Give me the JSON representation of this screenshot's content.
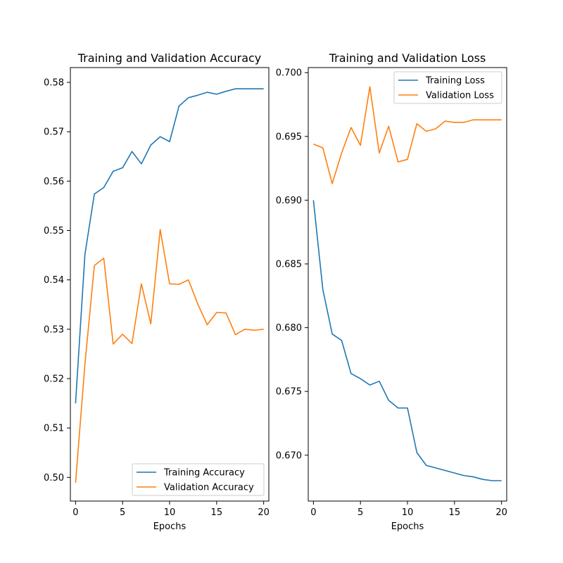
{
  "chart_data": [
    {
      "type": "line",
      "title": "Training and Validation Accuracy",
      "xlabel": "Epochs",
      "ylabel": "",
      "xlim": [
        -0.55,
        20.55
      ],
      "ylim": [
        0.4952,
        0.583
      ],
      "xticks": [
        0,
        5,
        10,
        15,
        20
      ],
      "xtick_labels": [
        "0",
        "5",
        "10",
        "15",
        "20"
      ],
      "yticks": [
        0.5,
        0.51,
        0.52,
        0.53,
        0.54,
        0.55,
        0.56,
        0.57,
        0.58
      ],
      "ytick_labels": [
        "0.50",
        "0.51",
        "0.52",
        "0.53",
        "0.54",
        "0.55",
        "0.56",
        "0.57",
        "0.58"
      ],
      "legend_position": "lower right",
      "x": [
        0,
        1,
        2,
        3,
        4,
        5,
        6,
        7,
        8,
        9,
        10,
        11,
        12,
        13,
        14,
        15,
        16,
        17,
        18,
        19,
        20
      ],
      "series": [
        {
          "name": "Training Accuracy",
          "color": "#1f77b4",
          "values": [
            0.515,
            0.5452,
            0.5574,
            0.5587,
            0.562,
            0.5627,
            0.566,
            0.5635,
            0.5673,
            0.569,
            0.568,
            0.5752,
            0.5769,
            0.5774,
            0.578,
            0.5776,
            0.5782,
            0.5787,
            0.5787,
            0.5787,
            0.5787
          ]
        },
        {
          "name": "Validation Accuracy",
          "color": "#ff7f0e",
          "values": [
            0.4989,
            0.523,
            0.5429,
            0.5444,
            0.527,
            0.529,
            0.5271,
            0.5392,
            0.5311,
            0.5502,
            0.5392,
            0.5391,
            0.54,
            0.5351,
            0.5309,
            0.5334,
            0.5333,
            0.5289,
            0.53,
            0.5298,
            0.53
          ]
        }
      ]
    },
    {
      "type": "line",
      "title": "Training and Validation Loss",
      "xlabel": "Epochs",
      "ylabel": "",
      "xlim": [
        -0.55,
        20.55
      ],
      "ylim": [
        0.6664,
        0.7004
      ],
      "xticks": [
        0,
        5,
        10,
        15,
        20
      ],
      "xtick_labels": [
        "0",
        "5",
        "10",
        "15",
        "20"
      ],
      "yticks": [
        0.67,
        0.675,
        0.68,
        0.685,
        0.69,
        0.695,
        0.7
      ],
      "ytick_labels": [
        "0.670",
        "0.675",
        "0.680",
        "0.685",
        "0.690",
        "0.695",
        "0.700"
      ],
      "legend_position": "upper right",
      "x": [
        0,
        1,
        2,
        3,
        4,
        5,
        6,
        7,
        8,
        9,
        10,
        11,
        12,
        13,
        14,
        15,
        16,
        17,
        18,
        19,
        20
      ],
      "series": [
        {
          "name": "Training Loss",
          "color": "#1f77b4",
          "values": [
            0.69,
            0.683,
            0.6795,
            0.679,
            0.6764,
            0.676,
            0.6755,
            0.6758,
            0.6743,
            0.6737,
            0.6737,
            0.6702,
            0.6692,
            0.669,
            0.6688,
            0.6686,
            0.6684,
            0.6683,
            0.6681,
            0.668,
            0.668
          ]
        },
        {
          "name": "Validation Loss",
          "color": "#ff7f0e",
          "values": [
            0.6944,
            0.6941,
            0.6913,
            0.6937,
            0.6957,
            0.6943,
            0.6989,
            0.6937,
            0.6958,
            0.693,
            0.6932,
            0.696,
            0.6954,
            0.6956,
            0.6962,
            0.6961,
            0.6961,
            0.6963,
            0.6963,
            0.6963,
            0.6963
          ]
        }
      ]
    }
  ]
}
